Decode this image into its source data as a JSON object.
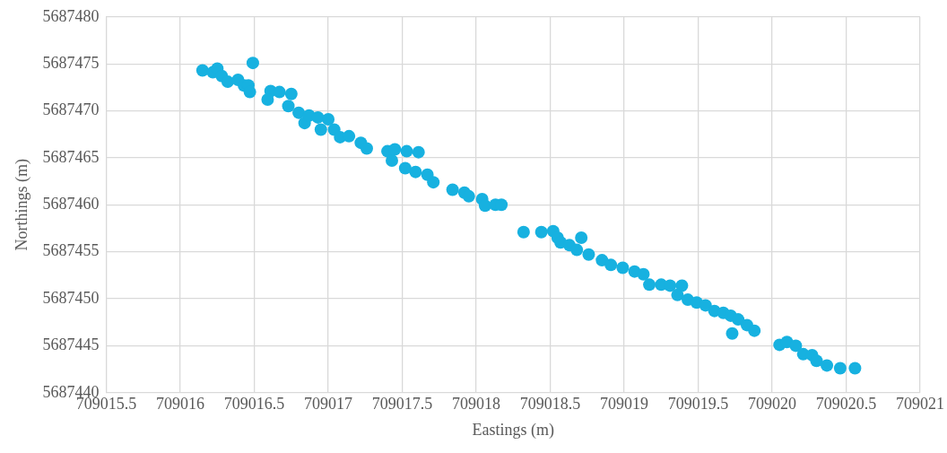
{
  "chart_data": {
    "type": "scatter",
    "xlabel": "Eastings (m)",
    "ylabel": "Northings (m)",
    "marker": "circle",
    "grid": true,
    "legend": false,
    "xlim": [
      709015.5,
      709021
    ],
    "xticks": [
      709015.5,
      709016,
      709016.5,
      709017,
      709017.5,
      709018,
      709018.5,
      709019,
      709019.5,
      709020,
      709020.5,
      709021
    ],
    "ylim": [
      5687440,
      5687480
    ],
    "yticks": [
      5687440,
      5687445,
      5687450,
      5687455,
      5687460,
      5687465,
      5687470,
      5687475,
      5687480
    ],
    "series": [
      {
        "color": "#17b1e0",
        "x": [
          709016.15,
          709016.22,
          709016.25,
          709016.28,
          709016.32,
          709016.39,
          709016.43,
          709016.46,
          709016.47,
          709016.49,
          709016.61,
          709016.59,
          709016.67,
          709016.75,
          709016.73,
          709016.8,
          709016.84,
          709016.87,
          709016.93,
          709017.0,
          709016.95,
          709017.04,
          709017.08,
          709017.14,
          709017.22,
          709017.26,
          709017.4,
          709017.45,
          709017.53,
          709017.61,
          709017.43,
          709017.52,
          709017.59,
          709017.67,
          709017.71,
          709017.84,
          709017.92,
          709017.95,
          709018.04,
          709018.06,
          709018.13,
          709018.17,
          709018.32,
          709018.44,
          709018.52,
          709018.55,
          709018.57,
          709018.63,
          709018.71,
          709018.68,
          709018.76,
          709018.85,
          709018.91,
          709018.99,
          709019.07,
          709019.13,
          709019.17,
          709019.25,
          709019.31,
          709019.39,
          709019.36,
          709019.43,
          709019.49,
          709019.55,
          709019.61,
          709019.67,
          709019.72,
          709019.77,
          709019.83,
          709019.88,
          709019.73,
          709020.05,
          709020.1,
          709020.16,
          709020.21,
          709020.27,
          709020.3,
          709020.37,
          709020.46,
          709020.56
        ],
        "values": [
          5687474.3,
          5687474.1,
          5687474.5,
          5687473.7,
          5687473.1,
          5687473.3,
          5687472.7,
          5687472.7,
          5687472.0,
          5687475.1,
          5687472.1,
          5687471.2,
          5687472.0,
          5687471.8,
          5687470.5,
          5687469.8,
          5687468.7,
          5687469.5,
          5687469.3,
          5687469.1,
          5687468.0,
          5687468.0,
          5687467.2,
          5687467.3,
          5687466.6,
          5687466.0,
          5687465.7,
          5687465.9,
          5687465.7,
          5687465.6,
          5687464.7,
          5687463.9,
          5687463.5,
          5687463.2,
          5687462.4,
          5687461.6,
          5687461.3,
          5687460.9,
          5687460.6,
          5687459.9,
          5687460.0,
          5687460.0,
          5687457.1,
          5687457.1,
          5687457.2,
          5687456.5,
          5687456.0,
          5687455.7,
          5687456.5,
          5687455.2,
          5687454.7,
          5687454.1,
          5687453.6,
          5687453.3,
          5687452.9,
          5687452.6,
          5687451.5,
          5687451.5,
          5687451.4,
          5687451.4,
          5687450.4,
          5687449.9,
          5687449.6,
          5687449.3,
          5687448.7,
          5687448.5,
          5687448.2,
          5687447.8,
          5687447.2,
          5687446.6,
          5687446.3,
          5687445.1,
          5687445.4,
          5687445.0,
          5687444.1,
          5687444.0,
          5687443.4,
          5687442.9,
          5687442.6,
          5687442.6
        ]
      }
    ]
  }
}
